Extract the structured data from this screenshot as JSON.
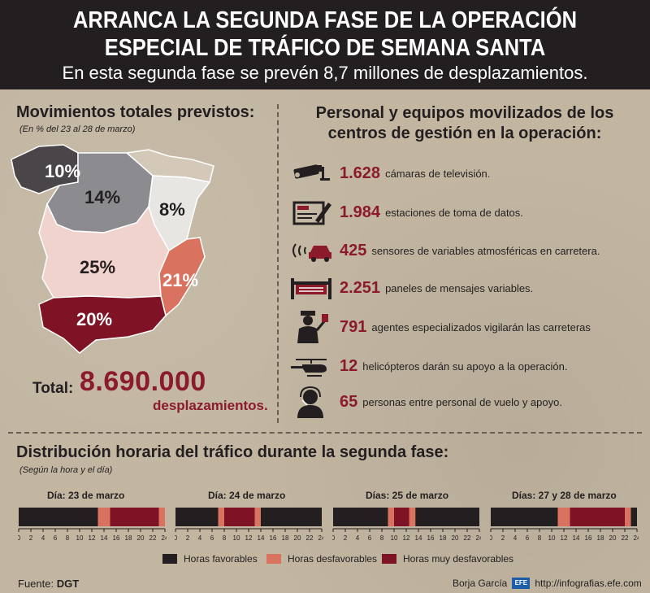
{
  "header": {
    "title_line1": "ARRANCA LA SEGUNDA FASE DE LA OPERACIÓN",
    "title_line2": "ESPECIAL DE TRÁFICO DE SEMANA SANTA",
    "subtitle": "En esta segunda fase se prevén 8,7 millones de desplazamientos."
  },
  "movimientos": {
    "title": "Movimientos totales previstos:",
    "note": "(En % del 23 al 28 de marzo)",
    "regions": [
      {
        "label": "10%",
        "color": "#4a4548"
      },
      {
        "label": "14%",
        "color": "#8c8b8f"
      },
      {
        "label": "8%",
        "color": "#e8e6e3"
      },
      {
        "label": "25%",
        "color": "#f0d3cc"
      },
      {
        "label": "21%",
        "color": "#d9735f"
      },
      {
        "label": "20%",
        "color": "#7d1324"
      }
    ],
    "total_label": "Total:",
    "total_value": "8.690.000",
    "total_unit": "desplazamientos."
  },
  "personal": {
    "title_line1": "Personal y equipos movilizados de los",
    "title_line2": "centros de gestión en la operación:",
    "items": [
      {
        "icon": "camera-icon",
        "value": "1.628",
        "text": "cámaras de televisión."
      },
      {
        "icon": "data-station-icon",
        "value": "1.984",
        "text": "estaciones de toma de datos."
      },
      {
        "icon": "weather-sensor-icon",
        "value": "425",
        "text": "sensores de variables atmosféricas en carretera."
      },
      {
        "icon": "message-panel-icon",
        "value": "2.251",
        "text": "paneles de mensajes variables."
      },
      {
        "icon": "traffic-agent-icon",
        "value": "791",
        "text": "agentes especializados vigilarán las carreteras"
      },
      {
        "icon": "helicopter-icon",
        "value": "12",
        "text": "helicópteros darán su apoyo a la operación."
      },
      {
        "icon": "headset-person-icon",
        "value": "65",
        "text": "personas entre personal de vuelo y apoyo."
      }
    ]
  },
  "distribucion": {
    "title": "Distribución horaria del tráfico durante la segunda fase:",
    "note": "(Según la hora y el día)",
    "ticks": [
      "0",
      "2",
      "4",
      "6",
      "8",
      "10",
      "12",
      "14",
      "16",
      "18",
      "20",
      "22",
      "24"
    ],
    "days": [
      {
        "label": "Día: 23 de marzo",
        "segments": [
          [
            0,
            13,
            "fav"
          ],
          [
            13,
            15,
            "desf"
          ],
          [
            15,
            23,
            "muy"
          ],
          [
            23,
            24,
            "desf"
          ]
        ]
      },
      {
        "label": "Día: 24 de marzo",
        "segments": [
          [
            0,
            7,
            "fav"
          ],
          [
            7,
            8,
            "desf"
          ],
          [
            8,
            13,
            "muy"
          ],
          [
            13,
            14,
            "desf"
          ],
          [
            14,
            24,
            "fav"
          ]
        ]
      },
      {
        "label": "Días: 25 de marzo",
        "segments": [
          [
            0,
            9,
            "fav"
          ],
          [
            9,
            10,
            "desf"
          ],
          [
            10,
            12.5,
            "muy"
          ],
          [
            12.5,
            13.5,
            "desf"
          ],
          [
            13.5,
            24,
            "fav"
          ]
        ]
      },
      {
        "label": "Días: 27 y 28 de marzo",
        "segments": [
          [
            0,
            11,
            "fav"
          ],
          [
            11,
            13,
            "desf"
          ],
          [
            13,
            22,
            "muy"
          ],
          [
            22,
            23,
            "desf"
          ],
          [
            23,
            24,
            "fav"
          ]
        ]
      }
    ],
    "legend": [
      {
        "key": "fav",
        "label": "Horas favorables",
        "color": "#231f20"
      },
      {
        "key": "desf",
        "label": "Horas desfavorables",
        "color": "#d9735f"
      },
      {
        "key": "muy",
        "label": "Horas muy desfavorables",
        "color": "#7d1324"
      }
    ]
  },
  "footer": {
    "source_label": "Fuente:",
    "source_value": "DGT",
    "author": "Borja García",
    "efe_logo": "EFE",
    "url": "http://infografias.efe.com"
  }
}
